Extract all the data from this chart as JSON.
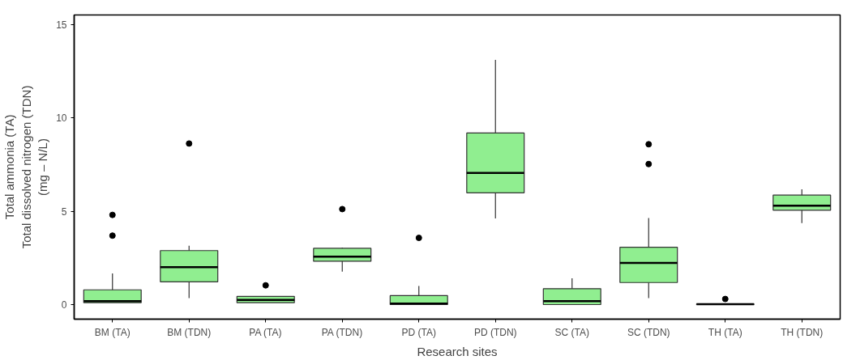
{
  "chart_data": {
    "type": "box",
    "xlabel": "Research sites",
    "ylabel": "Total ammonia (TA)\nTotal dissolved nitrogen (TDN)\n(mg – N/L)",
    "categories": [
      "BM (TA)",
      "BM (TDN)",
      "PA (TA)",
      "PA (TDN)",
      "PD (TA)",
      "PD (TDN)",
      "SC (TA)",
      "SC (TDN)",
      "TH (TA)",
      "TH (TDN)"
    ],
    "series": [
      {
        "color": "#90ee90",
        "boxes": [
          {
            "low": 0.1,
            "q1": 0.1,
            "median": 0.18,
            "q3": 0.79,
            "high": 1.67,
            "outliers": [
              4.8,
              3.69
            ]
          },
          {
            "low": 0.35,
            "q1": 1.22,
            "median": 2.0,
            "q3": 2.89,
            "high": 3.15,
            "outliers": [
              8.62
            ]
          },
          {
            "low": 0.1,
            "q1": 0.1,
            "median": 0.25,
            "q3": 0.44,
            "high": 0.44,
            "outliers": [
              1.03
            ]
          },
          {
            "low": 1.76,
            "q1": 2.32,
            "median": 2.56,
            "q3": 3.01,
            "high": 3.05,
            "outliers": [
              5.11
            ]
          },
          {
            "low": 0,
            "q1": 0,
            "median": 0.05,
            "q3": 0.48,
            "high": 0.99,
            "outliers": [
              3.57
            ]
          },
          {
            "low": 4.61,
            "q1": 5.98,
            "median": 7.05,
            "q3": 9.18,
            "high": 13.1
          },
          {
            "low": 0,
            "q1": 0,
            "median": 0.18,
            "q3": 0.85,
            "high": 1.41
          },
          {
            "low": 0.35,
            "q1": 1.18,
            "median": 2.23,
            "q3": 3.07,
            "high": 4.63,
            "outliers": [
              8.58,
              7.52
            ]
          },
          {
            "low": 0,
            "q1": 0,
            "median": 0.02,
            "q3": 0.03,
            "high": 0.03,
            "outliers": [
              0.3
            ]
          },
          {
            "low": 4.36,
            "q1": 5.05,
            "median": 5.29,
            "q3": 5.86,
            "high": 6.17
          }
        ]
      }
    ],
    "ylim": [
      -0.78,
      15.5
    ],
    "yticks": [
      0,
      5,
      10,
      15
    ],
    "grid": false
  }
}
